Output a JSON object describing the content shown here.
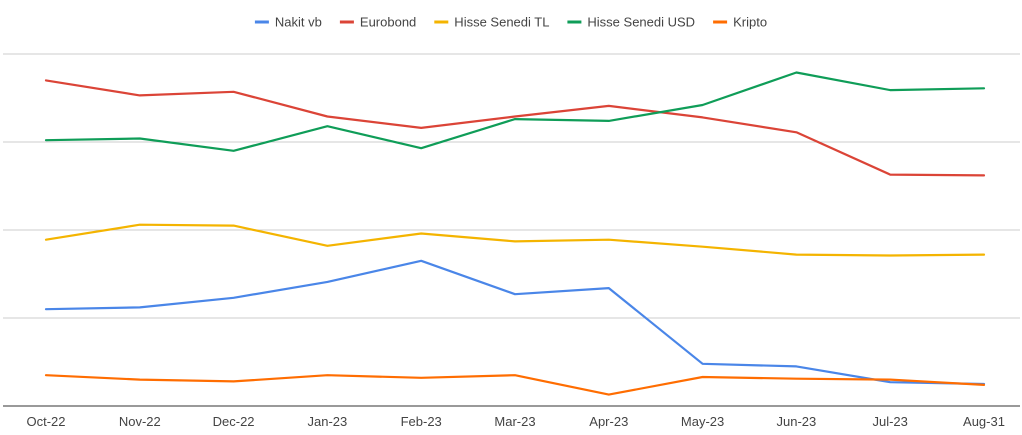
{
  "chart_data": {
    "type": "line",
    "title": "",
    "xlabel": "",
    "ylabel": "",
    "categories": [
      "Oct-22",
      "Nov-22",
      "Dec-22",
      "Jan-23",
      "Feb-23",
      "Mar-23",
      "Apr-23",
      "May-23",
      "Jun-23",
      "Jul-23",
      "Aug-31"
    ],
    "ylim": [
      0,
      40
    ],
    "y_gridlines": [
      10,
      20,
      30,
      40
    ],
    "y_tick_labels_shown": false,
    "grid": true,
    "legend_position": "top",
    "series": [
      {
        "name": "Nakit vb",
        "color": "#4a86e8",
        "values": [
          11,
          11.2,
          12.3,
          14.1,
          16.5,
          12.7,
          13.4,
          4.8,
          4.5,
          2.7,
          2.5
        ]
      },
      {
        "name": "Eurobond",
        "color": "#db4437",
        "values": [
          37,
          35.3,
          35.7,
          32.9,
          31.6,
          32.9,
          34.1,
          32.8,
          31.1,
          26.3,
          26.2
        ]
      },
      {
        "name": "Hisse Senedi TL",
        "color": "#f4b400",
        "values": [
          18.9,
          20.6,
          20.5,
          18.2,
          19.6,
          18.7,
          18.9,
          18.1,
          17.2,
          17.1,
          17.2
        ]
      },
      {
        "name": "Hisse Senedi USD",
        "color": "#0f9d58",
        "values": [
          30.2,
          30.4,
          29.0,
          31.8,
          29.3,
          32.6,
          32.4,
          34.2,
          37.9,
          35.9,
          36.1
        ]
      },
      {
        "name": "Kripto",
        "color": "#ff6d01",
        "values": [
          3.5,
          3.0,
          2.8,
          3.5,
          3.2,
          3.5,
          1.3,
          3.3,
          3.1,
          3.0,
          2.4
        ]
      }
    ]
  }
}
